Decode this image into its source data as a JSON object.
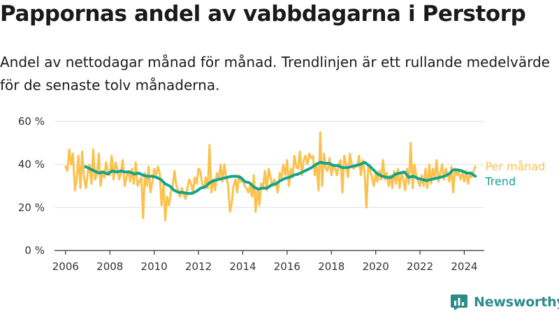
{
  "title": "Pappornas andel av vabbdagarna i Perstorp",
  "subtitle": "Andel av nettodagar månad för månad. Trendlinjen är ett rullande medelvärde för de senaste tolv månaderna.",
  "logo": {
    "text": "Newsworthy",
    "icon": "bar-chart-logo-icon",
    "color": "#2e8b87"
  },
  "chart_data": {
    "type": "line",
    "xlim": [
      2005.5,
      2024.9
    ],
    "ylim": [
      0,
      60
    ],
    "yticks": [
      0,
      20,
      40,
      60
    ],
    "ytick_labels": [
      "0 %",
      "20 %",
      "40 %",
      "60 %"
    ],
    "xticks": [
      2006,
      2008,
      2010,
      2012,
      2014,
      2016,
      2018,
      2020,
      2022,
      2024
    ],
    "xtick_labels": [
      "2006",
      "2008",
      "2010",
      "2012",
      "2014",
      "2016",
      "2018",
      "2020",
      "2022",
      "2024"
    ],
    "grid": true,
    "series": [
      {
        "name": "Per månad",
        "color": "#fbc14d",
        "x": [
          2006.0,
          2006.08,
          2006.17,
          2006.25,
          2006.33,
          2006.42,
          2006.5,
          2006.58,
          2006.67,
          2006.75,
          2006.83,
          2006.92,
          2007.0,
          2007.08,
          2007.17,
          2007.25,
          2007.33,
          2007.42,
          2007.5,
          2007.58,
          2007.67,
          2007.75,
          2007.83,
          2007.92,
          2008.0,
          2008.08,
          2008.17,
          2008.25,
          2008.33,
          2008.42,
          2008.5,
          2008.58,
          2008.67,
          2008.75,
          2008.83,
          2008.92,
          2009.0,
          2009.08,
          2009.17,
          2009.25,
          2009.33,
          2009.42,
          2009.5,
          2009.58,
          2009.67,
          2009.75,
          2009.83,
          2009.92,
          2010.0,
          2010.08,
          2010.17,
          2010.25,
          2010.33,
          2010.42,
          2010.5,
          2010.58,
          2010.67,
          2010.75,
          2010.83,
          2010.92,
          2011.0,
          2011.08,
          2011.17,
          2011.25,
          2011.33,
          2011.42,
          2011.5,
          2011.58,
          2011.67,
          2011.75,
          2011.83,
          2011.92,
          2012.0,
          2012.08,
          2012.17,
          2012.25,
          2012.33,
          2012.42,
          2012.5,
          2012.58,
          2012.67,
          2012.75,
          2012.83,
          2012.92,
          2013.0,
          2013.08,
          2013.17,
          2013.25,
          2013.33,
          2013.42,
          2013.5,
          2013.58,
          2013.67,
          2013.75,
          2013.83,
          2013.92,
          2014.0,
          2014.08,
          2014.17,
          2014.25,
          2014.33,
          2014.42,
          2014.5,
          2014.58,
          2014.67,
          2014.75,
          2014.83,
          2014.92,
          2015.0,
          2015.08,
          2015.17,
          2015.25,
          2015.33,
          2015.42,
          2015.5,
          2015.58,
          2015.67,
          2015.75,
          2015.83,
          2015.92,
          2016.0,
          2016.08,
          2016.17,
          2016.25,
          2016.33,
          2016.42,
          2016.5,
          2016.58,
          2016.67,
          2016.75,
          2016.83,
          2016.92,
          2017.0,
          2017.08,
          2017.17,
          2017.25,
          2017.33,
          2017.42,
          2017.5,
          2017.58,
          2017.67,
          2017.75,
          2017.83,
          2017.92,
          2018.0,
          2018.08,
          2018.17,
          2018.25,
          2018.33,
          2018.42,
          2018.5,
          2018.58,
          2018.67,
          2018.75,
          2018.83,
          2018.92,
          2019.0,
          2019.08,
          2019.17,
          2019.25,
          2019.33,
          2019.42,
          2019.5,
          2019.58,
          2019.67,
          2019.75,
          2019.83,
          2019.92,
          2020.0,
          2020.08,
          2020.17,
          2020.25,
          2020.33,
          2020.42,
          2020.5,
          2020.58,
          2020.67,
          2020.75,
          2020.83,
          2020.92,
          2021.0,
          2021.08,
          2021.17,
          2021.25,
          2021.33,
          2021.42,
          2021.5,
          2021.58,
          2021.67,
          2021.75,
          2021.83,
          2021.92,
          2022.0,
          2022.08,
          2022.17,
          2022.25,
          2022.33,
          2022.42,
          2022.5,
          2022.58,
          2022.67,
          2022.75,
          2022.83,
          2022.92,
          2023.0,
          2023.08,
          2023.17,
          2023.25,
          2023.33,
          2023.42,
          2023.5,
          2023.58,
          2023.67,
          2023.75,
          2023.83,
          2023.92,
          2024.0,
          2024.08,
          2024.17,
          2024.25,
          2024.33,
          2024.42,
          2024.5
        ],
        "values": [
          39,
          37,
          47,
          40,
          45,
          28,
          33,
          44,
          29,
          46,
          34,
          29,
          36,
          40,
          31,
          47,
          33,
          36,
          45,
          30,
          37,
          34,
          41,
          36,
          35,
          44,
          33,
          41,
          38,
          33,
          36,
          42,
          30,
          34,
          37,
          32,
          38,
          31,
          41,
          30,
          32,
          34,
          15,
          36,
          30,
          39,
          27,
          32,
          38,
          35,
          39,
          36,
          21,
          31,
          14,
          25,
          21,
          27,
          30,
          37,
          30,
          28,
          25,
          29,
          26,
          24,
          29,
          33,
          31,
          27,
          34,
          31,
          38,
          37,
          31,
          29,
          34,
          29,
          49,
          27,
          33,
          28,
          36,
          33,
          40,
          32,
          40,
          34,
          31,
          18,
          22,
          30,
          33,
          27,
          35,
          32,
          33,
          30,
          29,
          27,
          30,
          25,
          35,
          18,
          29,
          21,
          31,
          30,
          37,
          28,
          38,
          34,
          30,
          33,
          31,
          27,
          36,
          34,
          40,
          35,
          42,
          30,
          38,
          34,
          44,
          39,
          38,
          46,
          35,
          42,
          44,
          40,
          45,
          43,
          44,
          35,
          40,
          28,
          55,
          30,
          45,
          38,
          37,
          43,
          35,
          39,
          38,
          35,
          40,
          42,
          27,
          44,
          40,
          34,
          45,
          40,
          38,
          39,
          39,
          44,
          35,
          42,
          36,
          20,
          40,
          37,
          34,
          30,
          36,
          32,
          37,
          33,
          42,
          33,
          36,
          30,
          35,
          29,
          37,
          31,
          38,
          29,
          36,
          33,
          28,
          38,
          31,
          50,
          29,
          40,
          35,
          32,
          30,
          35,
          30,
          38,
          29,
          40,
          31,
          38,
          34,
          42,
          32,
          36,
          40,
          33,
          38,
          35,
          32,
          39,
          27,
          38,
          35,
          37,
          33,
          36,
          32,
          37,
          31,
          36,
          34,
          37,
          39
        ]
      },
      {
        "name": "Trend",
        "color": "#14a38b",
        "x": [
          2006.9,
          2007.1,
          2007.3,
          2007.5,
          2007.7,
          2007.9,
          2008.1,
          2008.3,
          2008.5,
          2008.7,
          2008.9,
          2009.1,
          2009.3,
          2009.5,
          2009.7,
          2009.9,
          2010.1,
          2010.3,
          2010.5,
          2010.7,
          2010.9,
          2011.1,
          2011.3,
          2011.5,
          2011.7,
          2011.9,
          2012.1,
          2012.3,
          2012.5,
          2012.7,
          2012.9,
          2013.1,
          2013.3,
          2013.5,
          2013.7,
          2013.9,
          2014.1,
          2014.3,
          2014.5,
          2014.7,
          2014.9,
          2015.1,
          2015.3,
          2015.5,
          2015.7,
          2015.9,
          2016.1,
          2016.3,
          2016.5,
          2016.7,
          2016.9,
          2017.1,
          2017.3,
          2017.5,
          2017.7,
          2017.9,
          2018.1,
          2018.3,
          2018.5,
          2018.7,
          2018.9,
          2019.1,
          2019.3,
          2019.5,
          2019.7,
          2019.9,
          2020.1,
          2020.3,
          2020.5,
          2020.7,
          2020.9,
          2021.1,
          2021.3,
          2021.5,
          2021.7,
          2021.9,
          2022.1,
          2022.3,
          2022.5,
          2022.7,
          2022.9,
          2023.1,
          2023.3,
          2023.5,
          2023.7,
          2023.9,
          2024.1,
          2024.3,
          2024.5
        ],
        "values": [
          39,
          38,
          37,
          36,
          36.5,
          35.5,
          37,
          36.5,
          37,
          36.5,
          36.5,
          35.5,
          36,
          35,
          34.5,
          34.5,
          34,
          33,
          31,
          30,
          28,
          27,
          27,
          26.5,
          26.5,
          27.5,
          29,
          29.5,
          31.5,
          32.5,
          33,
          33.5,
          34,
          34.5,
          34.5,
          34,
          32,
          31.5,
          29.5,
          28.5,
          29,
          29,
          30.5,
          31,
          32.5,
          33.5,
          34,
          35,
          35.5,
          36.5,
          37.5,
          38.5,
          40,
          41,
          40.5,
          40.5,
          39.5,
          39.5,
          38.5,
          38.5,
          39,
          39.5,
          40,
          41,
          39.5,
          37.5,
          35.5,
          34.5,
          34,
          34,
          35.5,
          36,
          36.5,
          34,
          34.5,
          33.5,
          33,
          32.5,
          33,
          33.5,
          34,
          34.5,
          35.5,
          37.5,
          37.5,
          37,
          36,
          36,
          34.5
        ]
      }
    ]
  }
}
